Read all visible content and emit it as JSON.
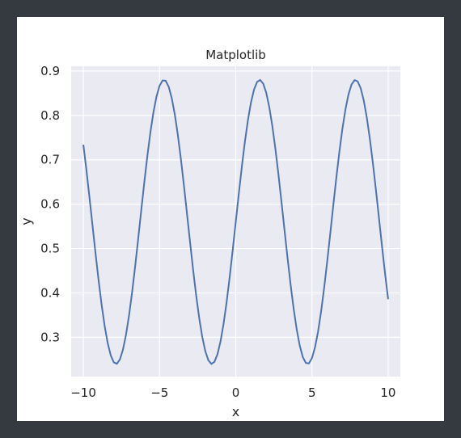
{
  "window": {
    "background": "#343a40",
    "canvas_background": "#ffffff"
  },
  "chart_data": {
    "type": "line",
    "title": "Matplotlib",
    "xlabel": "x",
    "ylabel": "y",
    "xlim": [
      -10.8,
      10.8
    ],
    "ylim": [
      0.2115,
      0.9107
    ],
    "grid": true,
    "plot_background": "#eaeaf2",
    "grid_color": "#ffffff",
    "line_color": "#4c72b0",
    "x_ticks": [
      -10,
      -5,
      0,
      5,
      10
    ],
    "x_tick_labels": [
      "−10",
      "−5",
      "0",
      "5",
      "10"
    ],
    "y_ticks": [
      0.3,
      0.4,
      0.5,
      0.6,
      0.7,
      0.8,
      0.9
    ],
    "y_tick_labels": [
      "0.3",
      "0.4",
      "0.5",
      "0.6",
      "0.7",
      "0.8",
      "0.9"
    ],
    "series": [
      {
        "x_start": -10,
        "x_end": 10,
        "x_step": 0.2,
        "formula": "0.56 + 0.32*sin(x)"
      }
    ]
  }
}
